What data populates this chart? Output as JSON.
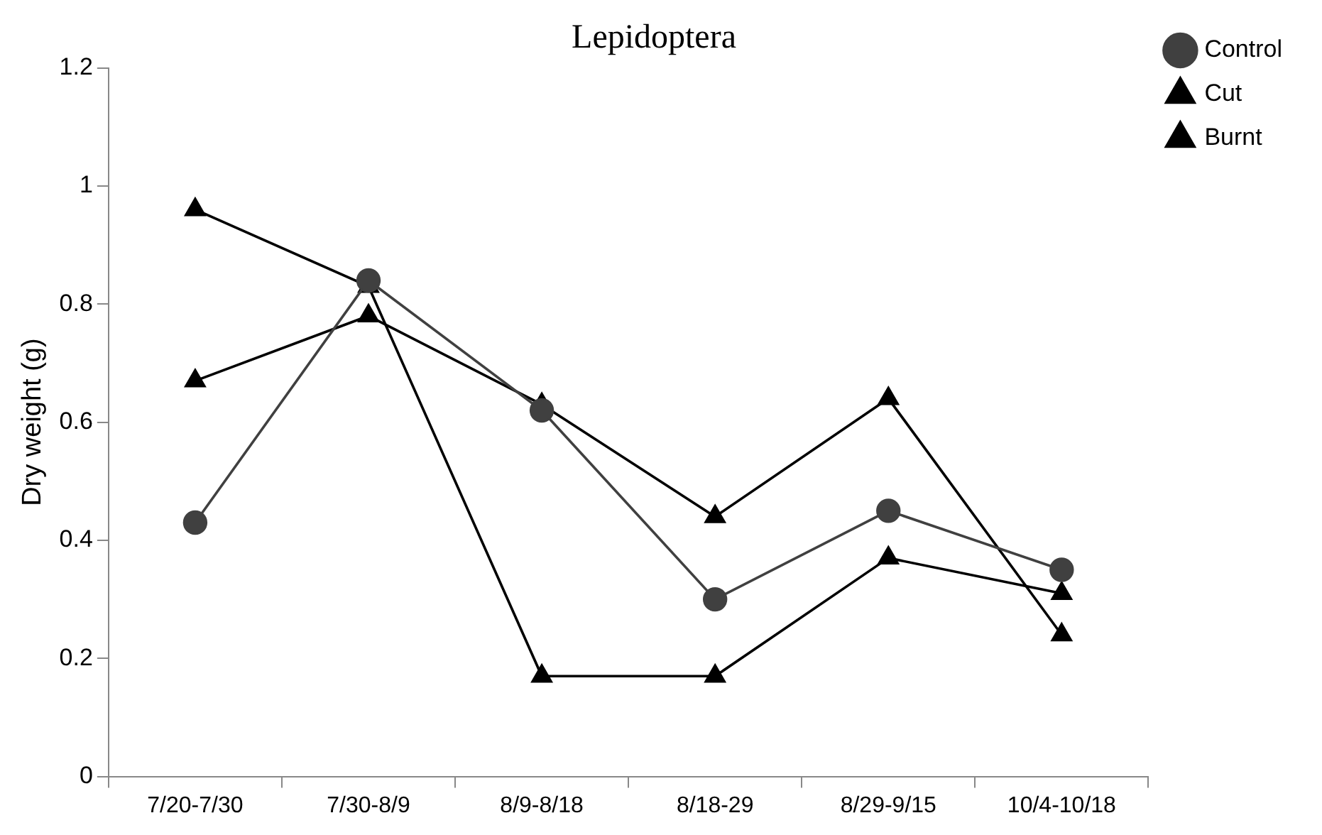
{
  "chart_data": {
    "type": "line",
    "title": "Lepidoptera",
    "ylabel": "Dry weight (g)",
    "categories": [
      "7/20-7/30",
      "7/30-8/9",
      "8/9-8/18",
      "8/18-29",
      "8/29-9/15",
      "10/4-10/18"
    ],
    "series": [
      {
        "name": "Control",
        "color": "#404040",
        "marker": "circle",
        "values": [
          0.43,
          0.84,
          0.62,
          0.3,
          0.45,
          0.35
        ]
      },
      {
        "name": "Cut",
        "color": "#000000",
        "marker": "triangle",
        "values": [
          0.96,
          0.83,
          0.17,
          0.17,
          0.37,
          0.31
        ]
      },
      {
        "name": "Burnt",
        "color": "#000000",
        "marker": "triangle",
        "values": [
          0.67,
          0.78,
          0.63,
          0.44,
          0.64,
          0.24
        ]
      }
    ],
    "ylim": [
      0,
      1.2
    ],
    "yticks": [
      0,
      0.2,
      0.4,
      0.6,
      0.8,
      1,
      1.2
    ],
    "grid": false,
    "legend": "top right"
  }
}
